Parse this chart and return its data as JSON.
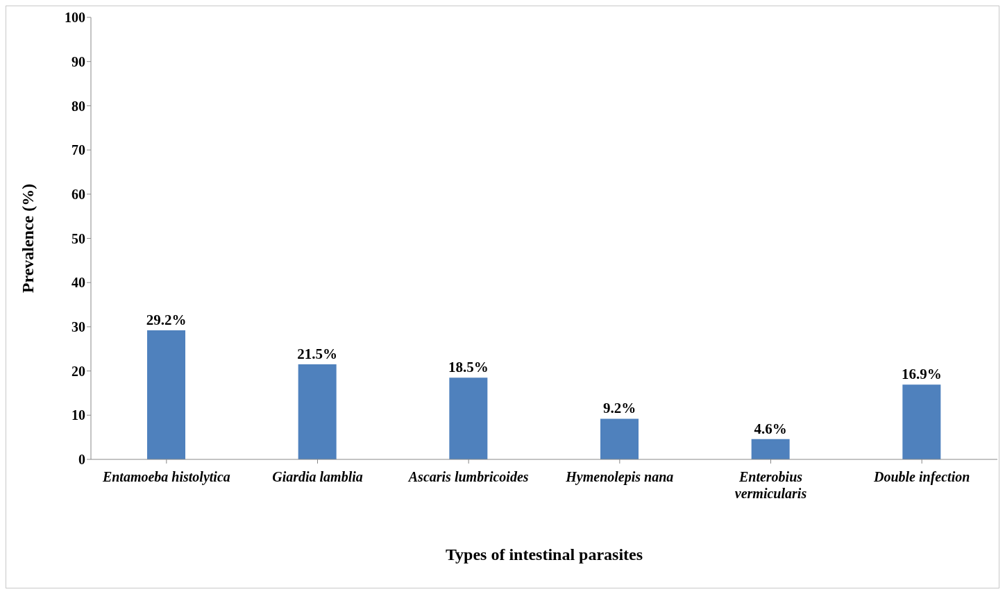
{
  "chart_data": {
    "type": "bar",
    "categories": [
      "Entamoeba histolytica",
      "Giardia lamblia",
      "Ascaris lumbricoides",
      "Hymenolepis nana",
      "Enterobius vermicularis",
      "Double infection"
    ],
    "values": [
      29.2,
      21.5,
      18.5,
      9.2,
      4.6,
      16.9
    ],
    "value_labels": [
      "29.2%",
      "21.5%",
      "18.5%",
      "9.2%",
      "4.6%",
      "16.9%"
    ],
    "color": "#4f81bd",
    "xlabel": "Types of intestinal parasites",
    "ylabel": "Prevalence (%)",
    "ylim": [
      0,
      100
    ],
    "yticks": [
      0,
      10,
      20,
      30,
      40,
      50,
      60,
      70,
      80,
      90,
      100
    ],
    "grid": false,
    "legend": false
  }
}
